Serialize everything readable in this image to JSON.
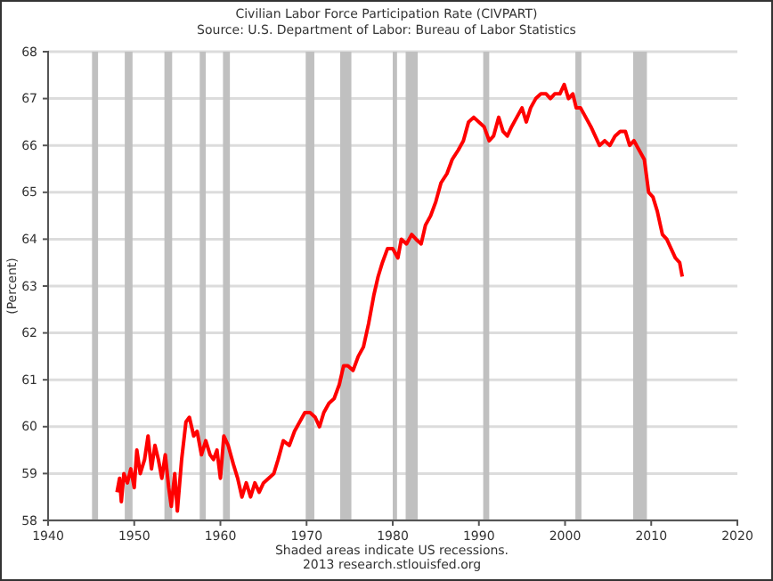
{
  "chart_data": {
    "type": "line",
    "title": "Civilian Labor Force Participation Rate (CIVPART)",
    "subtitle": "Source: U.S. Department of Labor: Bureau of Labor Statistics",
    "ylabel": "(Percent)",
    "annotations": [
      "Shaded areas indicate US recessions.",
      "2013 research.stlouisfed.org"
    ],
    "xlim": [
      1940,
      2020
    ],
    "xticks": [
      1940,
      1950,
      1960,
      1970,
      1980,
      1990,
      2000,
      2010,
      2020
    ],
    "ylim": [
      58,
      68
    ],
    "yticks": [
      58,
      59,
      60,
      61,
      62,
      63,
      64,
      65,
      66,
      67,
      68
    ],
    "grid": "y",
    "marker": "none",
    "line_style": "solid",
    "bands": [
      {
        "axis": "x",
        "from": 1945.1,
        "to": 1945.8,
        "color": "#c0c0c0"
      },
      {
        "axis": "x",
        "from": 1948.9,
        "to": 1949.8,
        "color": "#c0c0c0"
      },
      {
        "axis": "x",
        "from": 1953.5,
        "to": 1954.4,
        "color": "#c0c0c0"
      },
      {
        "axis": "x",
        "from": 1957.6,
        "to": 1958.3,
        "color": "#c0c0c0"
      },
      {
        "axis": "x",
        "from": 1960.3,
        "to": 1961.1,
        "color": "#c0c0c0"
      },
      {
        "axis": "x",
        "from": 1969.9,
        "to": 1970.9,
        "color": "#c0c0c0"
      },
      {
        "axis": "x",
        "from": 1973.9,
        "to": 1975.2,
        "color": "#c0c0c0"
      },
      {
        "axis": "x",
        "from": 1980.0,
        "to": 1980.5,
        "color": "#c0c0c0"
      },
      {
        "axis": "x",
        "from": 1981.5,
        "to": 1982.9,
        "color": "#c0c0c0"
      },
      {
        "axis": "x",
        "from": 1990.5,
        "to": 1991.2,
        "color": "#c0c0c0"
      },
      {
        "axis": "x",
        "from": 2001.2,
        "to": 2001.9,
        "color": "#c0c0c0"
      },
      {
        "axis": "x",
        "from": 2007.9,
        "to": 2009.5,
        "color": "#c0c0c0"
      }
    ],
    "series": [
      {
        "color": "#ff0000",
        "x": [
          1948.0,
          1948.3,
          1948.5,
          1948.8,
          1949.2,
          1949.6,
          1950.0,
          1950.3,
          1950.7,
          1951.2,
          1951.6,
          1952.0,
          1952.4,
          1952.8,
          1953.2,
          1953.6,
          1954.0,
          1954.3,
          1954.7,
          1955.0,
          1955.5,
          1956.0,
          1956.4,
          1956.9,
          1957.3,
          1957.8,
          1958.3,
          1958.8,
          1959.2,
          1959.6,
          1960.0,
          1960.4,
          1960.9,
          1961.5,
          1962.0,
          1962.5,
          1963.0,
          1963.5,
          1964.0,
          1964.5,
          1965.0,
          1965.6,
          1966.2,
          1966.7,
          1967.3,
          1968.0,
          1968.6,
          1969.2,
          1969.8,
          1970.4,
          1971.0,
          1971.5,
          1972.0,
          1972.6,
          1973.2,
          1973.8,
          1974.3,
          1974.8,
          1975.4,
          1976.0,
          1976.6,
          1977.2,
          1977.8,
          1978.3,
          1978.8,
          1979.4,
          1980.0,
          1980.6,
          1981.0,
          1981.6,
          1982.2,
          1982.7,
          1983.3,
          1983.8,
          1984.4,
          1985.0,
          1985.6,
          1986.3,
          1986.9,
          1987.6,
          1988.2,
          1988.8,
          1989.4,
          1990.0,
          1990.6,
          1991.2,
          1991.7,
          1992.3,
          1992.8,
          1993.3,
          1993.8,
          1994.4,
          1995.0,
          1995.5,
          1996.0,
          1996.6,
          1997.2,
          1997.8,
          1998.3,
          1998.8,
          1999.4,
          1999.9,
          2000.4,
          2000.9,
          2001.3,
          2001.8,
          2002.4,
          2003.0,
          2003.5,
          2004.0,
          2004.6,
          2005.2,
          2005.8,
          2006.4,
          2007.0,
          2007.5,
          2008.0,
          2008.6,
          2009.2,
          2009.7,
          2010.2,
          2010.7,
          2011.3,
          2011.8,
          2012.3,
          2012.8,
          2013.3,
          2013.6
        ],
        "values": [
          58.6,
          58.9,
          58.4,
          59.0,
          58.8,
          59.1,
          58.7,
          59.5,
          59.0,
          59.3,
          59.8,
          59.1,
          59.6,
          59.3,
          58.9,
          59.4,
          58.7,
          58.3,
          59.0,
          58.2,
          59.3,
          60.1,
          60.2,
          59.8,
          59.9,
          59.4,
          59.7,
          59.4,
          59.3,
          59.5,
          58.9,
          59.8,
          59.6,
          59.2,
          58.9,
          58.5,
          58.8,
          58.5,
          58.8,
          58.6,
          58.8,
          58.9,
          59.0,
          59.3,
          59.7,
          59.6,
          59.9,
          60.1,
          60.3,
          60.3,
          60.2,
          60.0,
          60.3,
          60.5,
          60.6,
          60.9,
          61.3,
          61.3,
          61.2,
          61.5,
          61.7,
          62.2,
          62.8,
          63.2,
          63.5,
          63.8,
          63.8,
          63.6,
          64.0,
          63.9,
          64.1,
          64.0,
          63.9,
          64.3,
          64.5,
          64.8,
          65.2,
          65.4,
          65.7,
          65.9,
          66.1,
          66.5,
          66.6,
          66.5,
          66.4,
          66.1,
          66.2,
          66.6,
          66.3,
          66.2,
          66.4,
          66.6,
          66.8,
          66.5,
          66.8,
          67.0,
          67.1,
          67.1,
          67.0,
          67.1,
          67.1,
          67.3,
          67.0,
          67.1,
          66.8,
          66.8,
          66.6,
          66.4,
          66.2,
          66.0,
          66.1,
          66.0,
          66.2,
          66.3,
          66.3,
          66.0,
          66.1,
          65.9,
          65.7,
          65.0,
          64.9,
          64.6,
          64.1,
          64.0,
          63.8,
          63.6,
          63.5,
          63.2
        ]
      }
    ]
  }
}
